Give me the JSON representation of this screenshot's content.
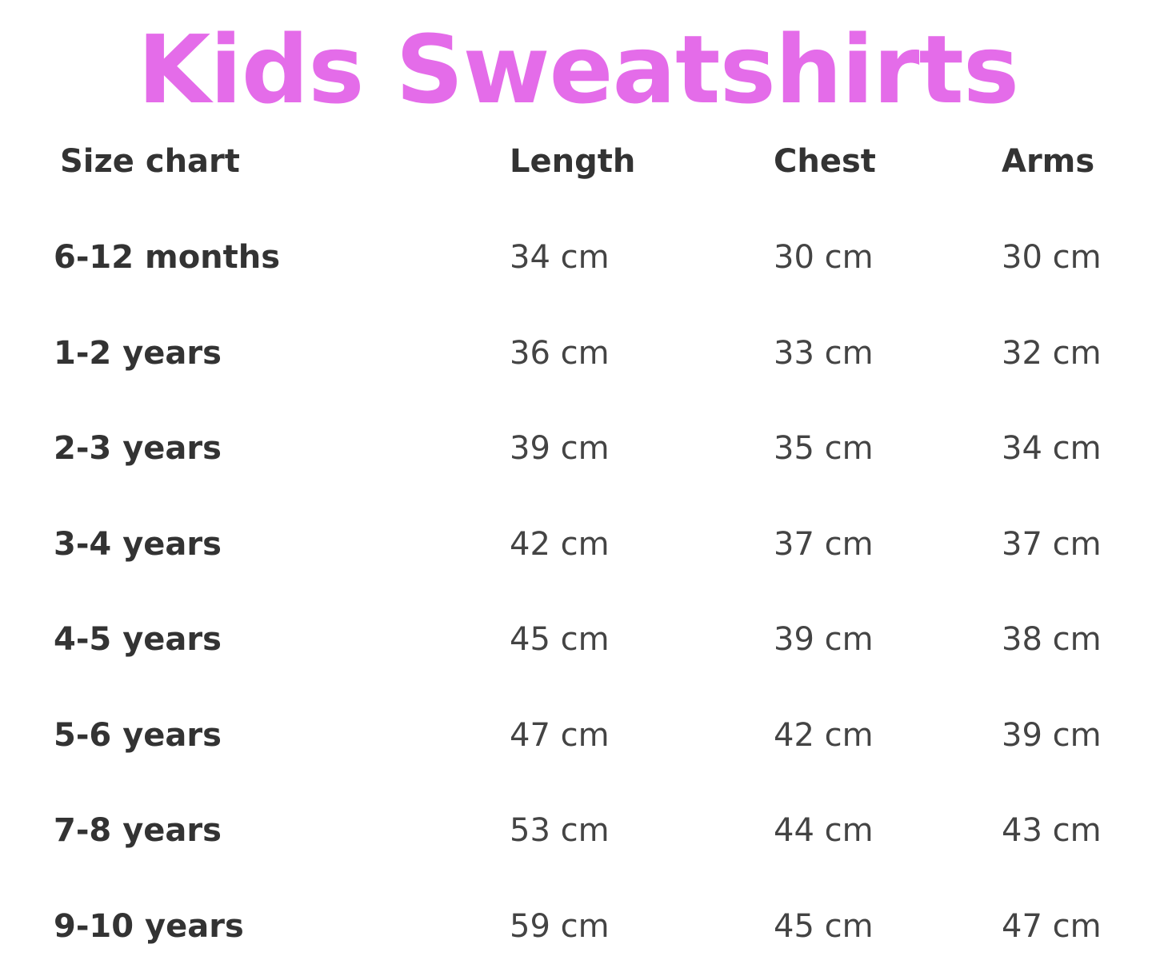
{
  "title": "Kids Sweatshirts",
  "title_color": "#e46ce9",
  "headers": [
    "Size chart",
    "Length",
    "Chest",
    "Arms"
  ],
  "rows": [
    [
      "6-12 months",
      "34 cm",
      "30 cm",
      "30 cm"
    ],
    [
      "1-2 years",
      "36 cm",
      "33 cm",
      "32 cm"
    ],
    [
      "2-3 years",
      "39 cm",
      "35 cm",
      "34 cm"
    ],
    [
      "3-4 years",
      "42 cm",
      "37 cm",
      "37 cm"
    ],
    [
      "4-5 years",
      "45 cm",
      "39 cm",
      "38 cm"
    ],
    [
      "5-6 years",
      "47 cm",
      "42 cm",
      "39 cm"
    ],
    [
      "7-8 years",
      "53 cm",
      "44 cm",
      "43 cm"
    ],
    [
      "9-10 years",
      "59 cm",
      "45 cm",
      "47 cm"
    ]
  ]
}
